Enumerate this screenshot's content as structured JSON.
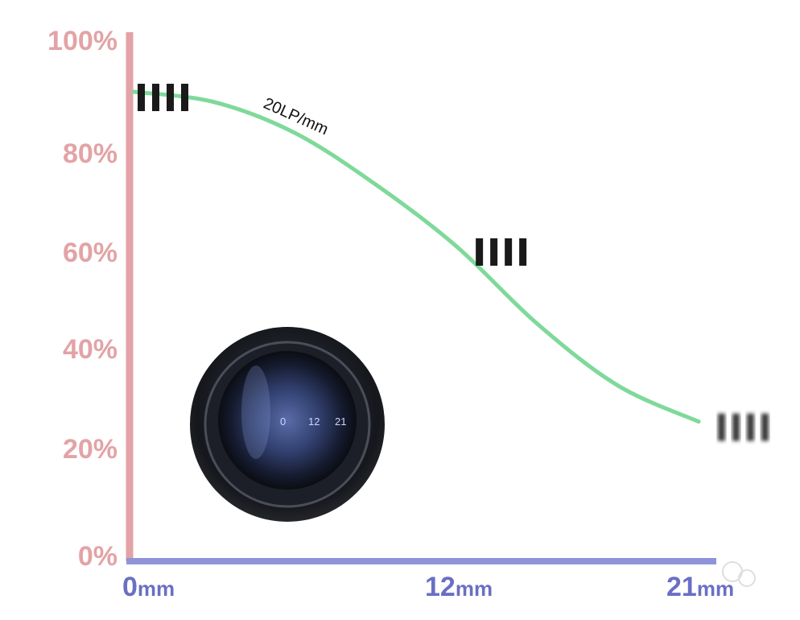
{
  "chart_data": {
    "type": "line",
    "title": "",
    "xlabel": "",
    "ylabel": "",
    "x_unit": "mm",
    "x_ticks": [
      "0",
      "12",
      "21"
    ],
    "y_ticks": [
      "100%",
      "80%",
      "60%",
      "40%",
      "20%",
      "0%"
    ],
    "xlim": [
      0,
      21
    ],
    "ylim": [
      0,
      100
    ],
    "series": [
      {
        "name": "20LP/mm",
        "x": [
          0,
          3,
          6,
          9,
          12,
          15,
          18,
          21
        ],
        "y": [
          90,
          88,
          82,
          72,
          60,
          45,
          33,
          26
        ]
      }
    ],
    "markers_at": [
      0,
      12,
      21
    ],
    "colors": {
      "y_axis": "#e3a3a6",
      "x_axis": "#8f94d8",
      "curve": "#7fd99a",
      "markers": "#1a1a1a"
    }
  },
  "lens": {
    "scale": [
      "0",
      "12",
      "21"
    ]
  }
}
